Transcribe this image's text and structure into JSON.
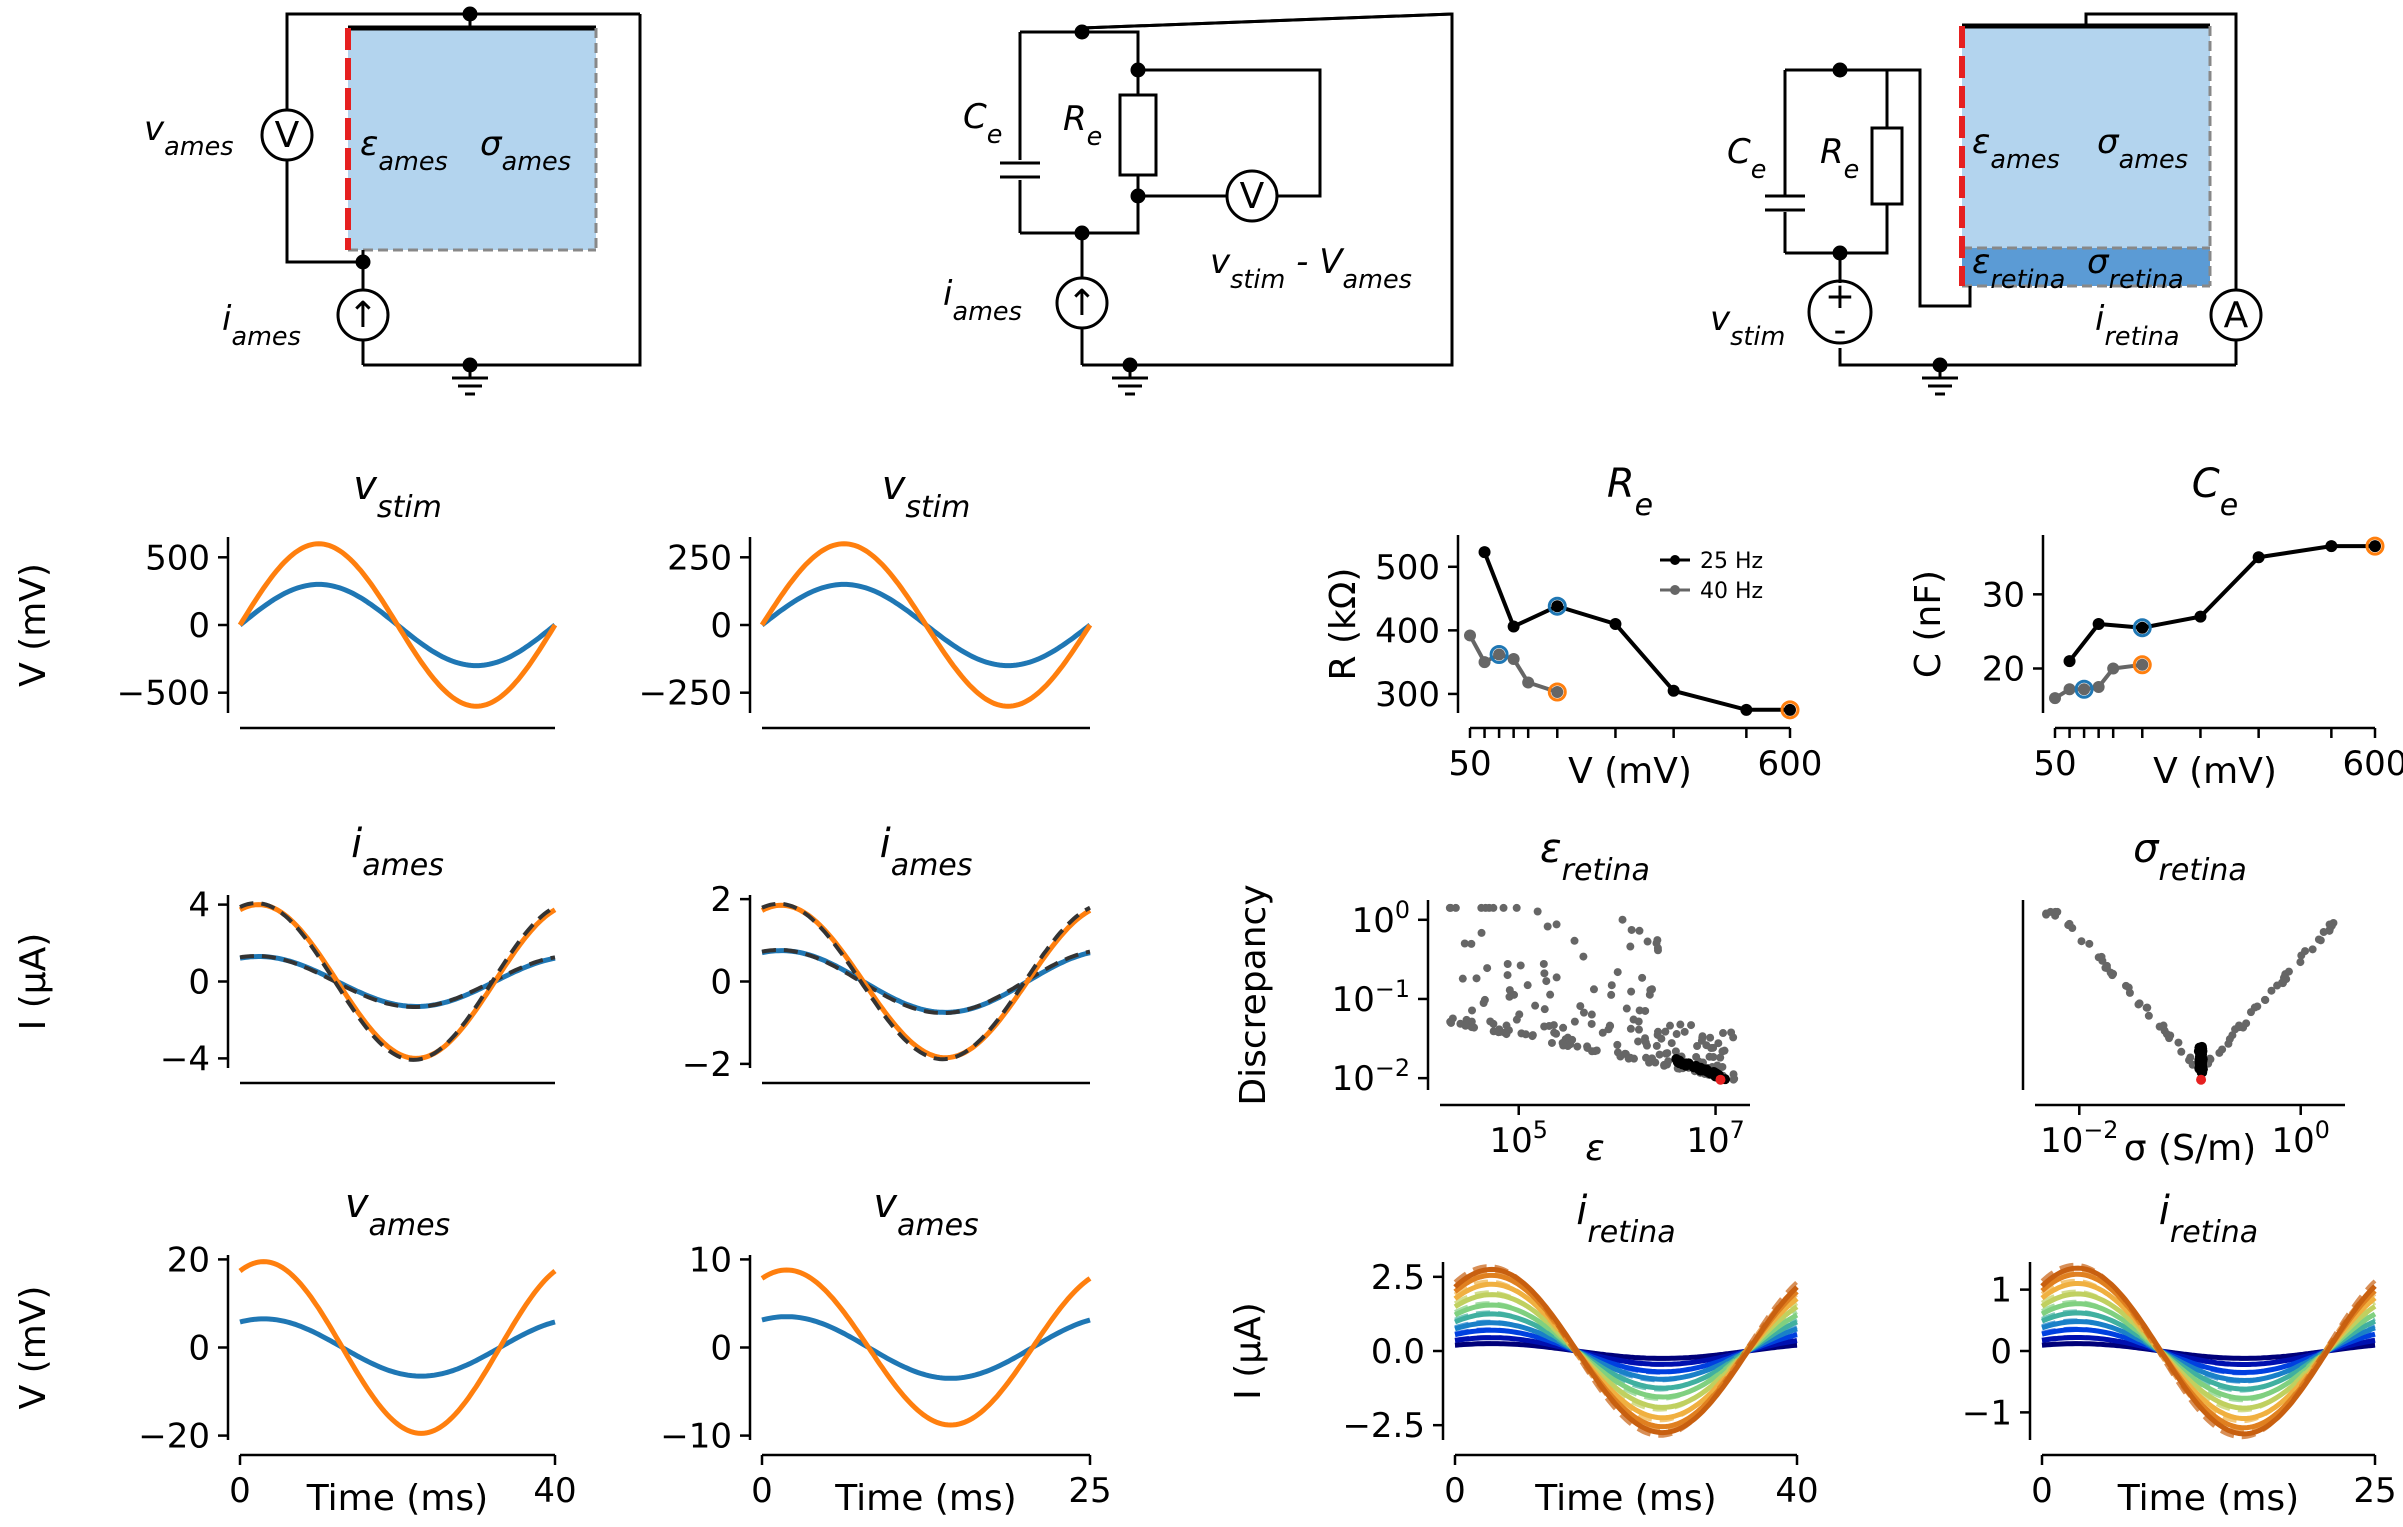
{
  "circuits": [
    {
      "labels": [
        {
          "text": "v",
          "sub": "ames",
          "x": 144,
          "y": 140
        },
        {
          "text": "ε",
          "sub": "ames",
          "x": 360,
          "y": 155
        },
        {
          "text": "σ",
          "sub": "ames",
          "x": 480,
          "y": 155
        },
        {
          "text": "i",
          "sub": "ames",
          "x": 222,
          "y": 330
        }
      ],
      "meters": [
        {
          "t": "V",
          "x": 287,
          "y": 135
        },
        {
          "t": "↑",
          "x": 363,
          "y": 315
        }
      ]
    },
    {
      "labels": [
        {
          "text": "C",
          "sub": "e",
          "x": 963,
          "y": 128
        },
        {
          "text": "R",
          "sub": "e",
          "x": 1063,
          "y": 130
        },
        {
          "text": "i",
          "sub": "ames",
          "x": 943,
          "y": 305
        }
      ],
      "meters": [
        {
          "t": "V",
          "x": 1252,
          "y": 196
        },
        {
          "t": "↑",
          "x": 1082,
          "y": 303
        }
      ],
      "extra": {
        "text": "v",
        "sub": "stim",
        "tail": " - V",
        "tailsub": "ames",
        "x": 1210,
        "y": 273
      }
    },
    {
      "labels": [
        {
          "text": "C",
          "sub": "e",
          "x": 1727,
          "y": 163
        },
        {
          "text": "R",
          "sub": "e",
          "x": 1820,
          "y": 163
        },
        {
          "text": "ε",
          "sub": "ames",
          "x": 1972,
          "y": 153
        },
        {
          "text": "σ",
          "sub": "ames",
          "x": 2097,
          "y": 153
        },
        {
          "text": "ε",
          "sub": "retina",
          "x": 1972,
          "y": 273
        },
        {
          "text": "σ",
          "sub": "retina",
          "x": 2087,
          "y": 273
        },
        {
          "text": "v",
          "sub": "stim",
          "x": 1710,
          "y": 330
        },
        {
          "text": "i",
          "sub": "retina",
          "x": 2095,
          "y": 330
        }
      ],
      "meters": [
        {
          "t": "A",
          "x": 2236,
          "y": 315
        },
        {
          "t": "+",
          "x": 1840,
          "y": 296
        },
        {
          "t": "-",
          "x": 1840,
          "y": 330
        }
      ]
    }
  ],
  "chart_data": [
    {
      "id": "p1",
      "type": "line",
      "title": "v",
      "title_sub": "stim",
      "ylabel": "V (mV)",
      "xlim": [
        0,
        40
      ],
      "ylim": [
        -650,
        650
      ],
      "yticks": [
        500,
        0,
        -500
      ],
      "ytick_labels": [
        "500",
        "0",
        "−500"
      ],
      "xticks": [],
      "ytick_first": -600,
      "ytick_last": 600,
      "series": [
        {
          "color": "#1f77b4",
          "amp": 300,
          "phase": 0,
          "kind": "sin",
          "period": 40
        },
        {
          "color": "#ff7f0e",
          "amp": 600,
          "phase": 0,
          "kind": "sin",
          "period": 40
        }
      ]
    },
    {
      "id": "p2",
      "type": "line",
      "title": "v",
      "title_sub": "stim",
      "ylabel": "",
      "xlim": [
        0,
        25
      ],
      "ylim": [
        -325,
        325
      ],
      "yticks": [
        250,
        0,
        -250
      ],
      "ytick_labels": [
        "250",
        "0",
        "−250"
      ],
      "xticks": [],
      "series": [
        {
          "color": "#1f77b4",
          "amp": 150,
          "phase": 0,
          "kind": "sin",
          "period": 25
        },
        {
          "color": "#ff7f0e",
          "amp": 300,
          "phase": 0,
          "kind": "sin",
          "period": 25
        }
      ]
    },
    {
      "id": "p3",
      "type": "line",
      "title": "i",
      "title_sub": "ames",
      "ylabel": "I (μA)",
      "xlim": [
        0,
        40
      ],
      "ylim": [
        -4.5,
        4.5
      ],
      "yticks": [
        4,
        0,
        -4
      ],
      "ytick_labels": [
        "4",
        "0",
        "−4"
      ],
      "xticks": [],
      "series": [
        {
          "color": "#1f77b4",
          "amp": 1.3,
          "phase": 1.2,
          "kind": "sin",
          "period": 40,
          "dash": true
        },
        {
          "color": "#ff7f0e",
          "amp": 4.0,
          "phase": 1.2,
          "kind": "sin",
          "period": 40,
          "dash": true
        }
      ]
    },
    {
      "id": "p4",
      "type": "line",
      "title": "i",
      "title_sub": "ames",
      "ylabel": "",
      "xlim": [
        0,
        25
      ],
      "ylim": [
        -2.1,
        2.1
      ],
      "yticks": [
        2,
        0,
        -2
      ],
      "ytick_labels": [
        "2",
        "0",
        "−2"
      ],
      "xticks": [],
      "series": [
        {
          "color": "#1f77b4",
          "amp": 0.75,
          "phase": 1.2,
          "kind": "sin",
          "period": 25,
          "dash": true
        },
        {
          "color": "#ff7f0e",
          "amp": 1.85,
          "phase": 1.2,
          "kind": "sin",
          "period": 25,
          "dash": true
        }
      ]
    },
    {
      "id": "p5",
      "type": "line",
      "title": "v",
      "title_sub": "ames",
      "ylabel": "V (mV)",
      "xlabel": "Time (ms)",
      "xlim": [
        0,
        40
      ],
      "ylim": [
        -21,
        21
      ],
      "yticks": [
        20,
        0,
        -20
      ],
      "ytick_labels": [
        "20",
        "0",
        "−20"
      ],
      "xticks": [
        0,
        40
      ],
      "xtick_labels": [
        "0",
        "40"
      ],
      "series": [
        {
          "color": "#1f77b4",
          "amp": 6.5,
          "phase": 1.1,
          "kind": "sin",
          "period": 40
        },
        {
          "color": "#ff7f0e",
          "amp": 19.5,
          "phase": 1.1,
          "kind": "sin",
          "period": 40
        }
      ]
    },
    {
      "id": "p6",
      "type": "line",
      "title": "v",
      "title_sub": "ames",
      "ylabel": "",
      "xlabel": "Time (ms)",
      "xlim": [
        0,
        25
      ],
      "ylim": [
        -10.5,
        10.5
      ],
      "yticks": [
        10,
        0,
        -10
      ],
      "ytick_labels": [
        "10",
        "0",
        "−10"
      ],
      "xticks": [
        0,
        25
      ],
      "xtick_labels": [
        "0",
        "25"
      ],
      "series": [
        {
          "color": "#1f77b4",
          "amp": 3.5,
          "phase": 1.1,
          "kind": "sin",
          "period": 25
        },
        {
          "color": "#ff7f0e",
          "amp": 8.8,
          "phase": 1.1,
          "kind": "sin",
          "period": 25
        }
      ]
    },
    {
      "id": "p7",
      "type": "line",
      "title": "R",
      "title_sub": "e",
      "ylabel": "R (kΩ)",
      "xlabel": "V (mV)",
      "xlim": [
        50,
        600
      ],
      "ylim": [
        270,
        550
      ],
      "yticks": [
        500,
        400,
        300
      ],
      "ytick_labels": [
        "500",
        "400",
        "300"
      ],
      "xticks": [
        50,
        600
      ],
      "xtick_labels": [
        "50",
        "600"
      ],
      "legend": [
        {
          "name": "25 Hz",
          "color": "#000000"
        },
        {
          "name": "40 Hz",
          "color": "#666666"
        }
      ],
      "series": [
        {
          "name": "25 Hz",
          "color": "#000000",
          "x": [
            75,
            125,
            200,
            300,
            400,
            525,
            600
          ],
          "y": [
            523,
            406,
            438,
            410,
            305,
            275,
            275
          ]
        },
        {
          "name": "40 Hz",
          "color": "#666666",
          "x": [
            50,
            75,
            100,
            125,
            150,
            200
          ],
          "y": [
            392,
            350,
            362,
            355,
            318,
            303
          ]
        }
      ],
      "highlight": [
        {
          "x": 200,
          "y": 438,
          "color": "#1f77b4"
        },
        {
          "x": 100,
          "y": 362,
          "color": "#1f77b4"
        },
        {
          "x": 600,
          "y": 275,
          "color": "#ff7f0e"
        },
        {
          "x": 200,
          "y": 303,
          "color": "#ff7f0e"
        }
      ]
    },
    {
      "id": "p8",
      "type": "line",
      "title": "C",
      "title_sub": "e",
      "ylabel": "C (nF)",
      "xlabel": "V (mV)",
      "xlim": [
        50,
        600
      ],
      "ylim": [
        14,
        38
      ],
      "yticks": [
        30,
        20
      ],
      "ytick_labels": [
        "30",
        "20"
      ],
      "xticks": [
        50,
        600
      ],
      "xtick_labels": [
        "50",
        "600"
      ],
      "series": [
        {
          "name": "25 Hz",
          "color": "#000000",
          "x": [
            75,
            125,
            200,
            300,
            400,
            525,
            600
          ],
          "y": [
            21,
            26,
            25.5,
            27,
            35,
            36.5,
            36.5
          ]
        },
        {
          "name": "40 Hz",
          "color": "#666666",
          "x": [
            50,
            75,
            100,
            125,
            150,
            200
          ],
          "y": [
            16,
            17.2,
            17.2,
            17.5,
            20,
            20.5
          ]
        }
      ],
      "highlight": [
        {
          "x": 200,
          "y": 25.5,
          "color": "#1f77b4"
        },
        {
          "x": 100,
          "y": 17.2,
          "color": "#1f77b4"
        },
        {
          "x": 600,
          "y": 36.5,
          "color": "#ff7f0e"
        },
        {
          "x": 200,
          "y": 20.5,
          "color": "#ff7f0e"
        }
      ]
    },
    {
      "id": "p9",
      "type": "scatter",
      "title": "ε",
      "title_sub": "retina",
      "ylabel": "Discrepancy",
      "xlabel": "ε",
      "xlog": true,
      "ylog": true,
      "xlim": [
        4.2,
        7.35
      ],
      "ylim": [
        -2.15,
        0.25
      ],
      "yticks": [
        0,
        -1,
        -2
      ],
      "ytick_labels": [
        "10",
        "10",
        "10"
      ],
      "ytick_exp": [
        "0",
        "−1",
        "−2"
      ],
      "xticks": [
        5,
        7
      ],
      "xtick_labels": [
        "10",
        "10"
      ],
      "xtick_exp": [
        "5",
        "7"
      ]
    },
    {
      "id": "p10",
      "type": "scatter",
      "title": "σ",
      "title_sub": "retina",
      "ylabel": "",
      "xlabel": "σ (S/m)",
      "xlog": true,
      "ylog": true,
      "xlim": [
        -2.4,
        0.4
      ],
      "ylim": [
        -2.15,
        0.25
      ],
      "yticks": [],
      "xticks": [
        -2,
        0
      ],
      "xtick_labels": [
        "10",
        "10"
      ],
      "xtick_exp": [
        "−2",
        "0"
      ]
    },
    {
      "id": "p11",
      "type": "line",
      "title": "i",
      "title_sub": "retina",
      "ylabel": "I (μA)",
      "xlabel": "Time (ms)",
      "xlim": [
        0,
        40
      ],
      "ylim": [
        -3.0,
        3.0
      ],
      "yticks": [
        2.5,
        0,
        -2.5
      ],
      "ytick_labels": [
        "2.5",
        "0.0",
        "−2.5"
      ],
      "xticks": [
        0,
        40
      ],
      "xtick_labels": [
        "0",
        "40"
      ],
      "amps": [
        0.25,
        0.45,
        0.7,
        0.95,
        1.25,
        1.55,
        1.9,
        2.25,
        2.55,
        2.75
      ],
      "period": 40
    },
    {
      "id": "p12",
      "type": "line",
      "title": "i",
      "title_sub": "retina",
      "ylabel": "",
      "xlabel": "Time (ms)",
      "xlim": [
        0,
        25
      ],
      "ylim": [
        -1.45,
        1.45
      ],
      "yticks": [
        1,
        0,
        -1
      ],
      "ytick_labels": [
        "1",
        "0",
        "−1"
      ],
      "xticks": [
        0,
        25
      ],
      "xtick_labels": [
        "0",
        "25"
      ],
      "amps": [
        0.12,
        0.22,
        0.35,
        0.48,
        0.62,
        0.77,
        0.93,
        1.1,
        1.25,
        1.35
      ],
      "period": 25
    }
  ]
}
